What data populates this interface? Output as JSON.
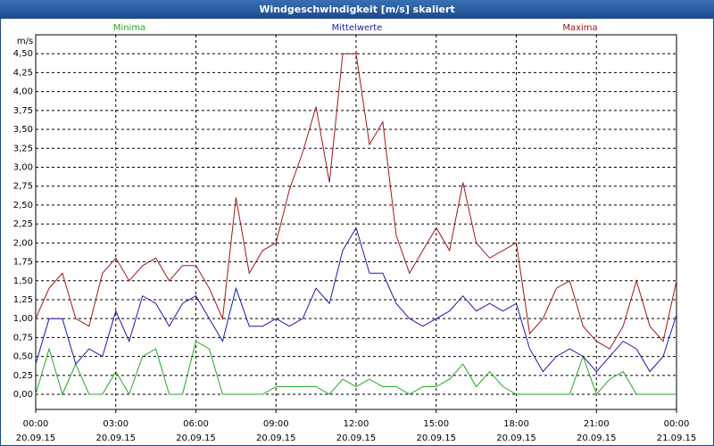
{
  "chart_data": {
    "type": "line",
    "title": "Windgeschwindigkeit [m/s] skaliert",
    "y_label": "m/s",
    "x": [
      0,
      0.5,
      1,
      1.5,
      2,
      2.5,
      3,
      3.5,
      4,
      4.5,
      5,
      5.5,
      6,
      6.5,
      7,
      7.5,
      8,
      8.5,
      9,
      9.5,
      10,
      10.5,
      11,
      11.5,
      12,
      12.5,
      13,
      13.5,
      14,
      14.5,
      15,
      15.5,
      16,
      16.5,
      17,
      17.5,
      18,
      18.5,
      19,
      19.5,
      20,
      20.5,
      21,
      21.5,
      22,
      22.5,
      23,
      23.5,
      24
    ],
    "series": [
      {
        "name": "Minima",
        "color": "#22a822",
        "values": [
          0,
          0.6,
          0,
          0.4,
          0,
          0,
          0.3,
          0,
          0.5,
          0.6,
          0,
          0,
          0.7,
          0.6,
          0,
          0,
          0,
          0,
          0.1,
          0.1,
          0.1,
          0.1,
          0,
          0.2,
          0.1,
          0.2,
          0.1,
          0.1,
          0,
          0.1,
          0.1,
          0.2,
          0.4,
          0.1,
          0.3,
          0.1,
          0,
          0,
          0,
          0,
          0,
          0.5,
          0,
          0.2,
          0.3,
          0,
          0,
          0,
          0
        ]
      },
      {
        "name": "Mittelwerte",
        "color": "#1a1aa8",
        "values": [
          0.4,
          1,
          1,
          0.4,
          0.6,
          0.5,
          1.1,
          0.7,
          1.3,
          1.2,
          0.9,
          1.2,
          1.3,
          1,
          0.7,
          1.4,
          0.9,
          0.9,
          1,
          0.9,
          1,
          1.4,
          1.2,
          1.9,
          2.2,
          1.6,
          1.6,
          1.2,
          1,
          0.9,
          1,
          1.1,
          1.3,
          1.1,
          1.2,
          1.1,
          1.2,
          0.6,
          0.3,
          0.5,
          0.6,
          0.5,
          0.3,
          0.5,
          0.7,
          0.6,
          0.3,
          0.5,
          1.05
        ]
      },
      {
        "name": "Maxima",
        "color": "#a01818",
        "values": [
          1,
          1.4,
          1.6,
          1,
          0.9,
          1.6,
          1.8,
          1.5,
          1.7,
          1.8,
          1.5,
          1.7,
          1.7,
          1.4,
          1,
          2.6,
          1.6,
          1.9,
          2,
          2.7,
          3.2,
          3.8,
          2.8,
          4.5,
          4.5,
          3.3,
          3.6,
          2.1,
          1.6,
          1.9,
          2.2,
          1.9,
          2.8,
          2,
          1.8,
          1.9,
          2,
          0.8,
          1,
          1.4,
          1.5,
          0.9,
          0.7,
          0.6,
          0.9,
          1.5,
          0.9,
          0.7,
          1.5
        ]
      }
    ],
    "xlim": [
      0,
      24
    ],
    "xticks": [
      {
        "value": 0,
        "label": "00:00",
        "date": "20.09.15"
      },
      {
        "value": 3,
        "label": "03:00",
        "date": "20.09.15"
      },
      {
        "value": 6,
        "label": "06:00",
        "date": "20.09.15"
      },
      {
        "value": 9,
        "label": "09:00",
        "date": "20.09.15"
      },
      {
        "value": 12,
        "label": "12:00",
        "date": "20.09.15"
      },
      {
        "value": 15,
        "label": "15:00",
        "date": "20.09.15"
      },
      {
        "value": 18,
        "label": "18:00",
        "date": "20.09.15"
      },
      {
        "value": 21,
        "label": "21:00",
        "date": "20.09.15"
      },
      {
        "value": 24,
        "label": "00:00",
        "date": "21.09.15"
      }
    ],
    "ylim": [
      -0.2,
      4.75
    ],
    "yticks": [
      {
        "value": 0,
        "label": "0,00"
      },
      {
        "value": 0.25,
        "label": "0,25"
      },
      {
        "value": 0.5,
        "label": "0,50"
      },
      {
        "value": 0.75,
        "label": "0,75"
      },
      {
        "value": 1,
        "label": "1,00"
      },
      {
        "value": 1.25,
        "label": "1,25"
      },
      {
        "value": 1.5,
        "label": "1,50"
      },
      {
        "value": 1.75,
        "label": "1,75"
      },
      {
        "value": 2,
        "label": "2,00"
      },
      {
        "value": 2.25,
        "label": "2,25"
      },
      {
        "value": 2.5,
        "label": "2,50"
      },
      {
        "value": 2.75,
        "label": "2,75"
      },
      {
        "value": 3,
        "label": "3,00"
      },
      {
        "value": 3.25,
        "label": "3,25"
      },
      {
        "value": 3.5,
        "label": "3,50"
      },
      {
        "value": 3.75,
        "label": "3,75"
      },
      {
        "value": 4,
        "label": "4,00"
      },
      {
        "value": 4.25,
        "label": "4,25"
      },
      {
        "value": 4.5,
        "label": "4,50"
      }
    ],
    "grid": true
  }
}
